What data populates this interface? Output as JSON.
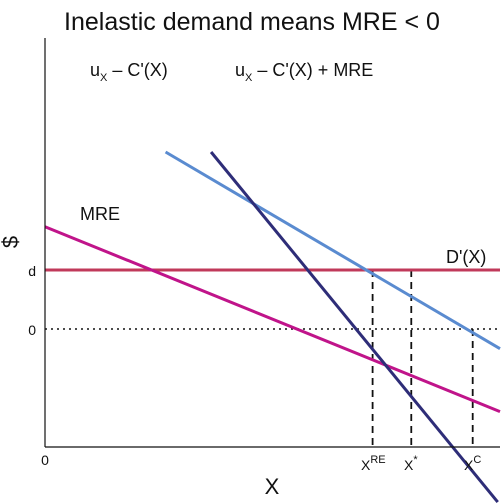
{
  "chart_data": {
    "type": "line",
    "title": "Inelastic demand means MRE < 0",
    "xlabel": "X",
    "ylabel": "$",
    "xlim": [
      0,
      10
    ],
    "ylim": [
      -4.4,
      4.5
    ],
    "grid": false,
    "x_ticks": [
      {
        "value": 0,
        "label": "0"
      }
    ],
    "y_ticks": [
      {
        "value": 0,
        "label": "0"
      },
      {
        "value": 1.5,
        "label": "d"
      }
    ],
    "series": [
      {
        "name": "D'(X)",
        "color": "#c0395a",
        "x": [
          0,
          10
        ],
        "y": [
          1.5,
          1.5
        ]
      },
      {
        "name": "MRE",
        "color": "#c0148a",
        "x": [
          0,
          10
        ],
        "y": [
          2.6,
          -2.1
        ]
      },
      {
        "name": "uX – C'(X)",
        "color": "#5a8bd0",
        "x": [
          2.65,
          10
        ],
        "y": [
          4.5,
          -0.5
        ]
      },
      {
        "name": "uX – C'(X) + MRE",
        "color": "#2e2d78",
        "x": [
          3.65,
          9.95
        ],
        "y": [
          4.5,
          -4.4
        ]
      }
    ],
    "reference_lines": [
      {
        "orientation": "horizontal",
        "y": 0,
        "style": "dotted"
      }
    ],
    "markers": [
      {
        "label_main": "X",
        "label_sup": "RE",
        "x": 7.2,
        "from_y": 1.5
      },
      {
        "label_main": "X",
        "label_sup": "*",
        "x": 8.05,
        "from_y": 1.5
      },
      {
        "label_main": "X",
        "label_sup": "C",
        "x": 9.4,
        "from_y": 0
      }
    ],
    "curve_labels": [
      {
        "main": "u",
        "sub": "X",
        "rest": " – C'(X)"
      },
      {
        "main": "u",
        "sub": "X",
        "rest": " – C'(X) + MRE"
      },
      {
        "main": "MRE",
        "sub": "",
        "rest": ""
      },
      {
        "main": "D'(X)",
        "sub": "",
        "rest": ""
      }
    ]
  }
}
